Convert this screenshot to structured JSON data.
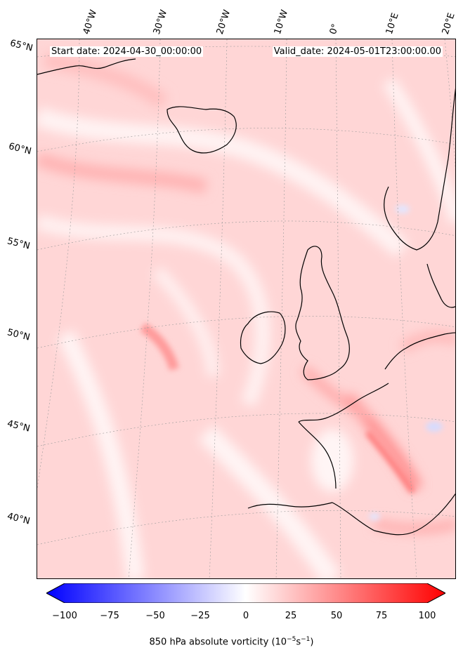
{
  "header": {
    "start_date": "Start date: 2024-04-30_00:00:00",
    "valid_date": "Valid_date: 2024-05-01T23:00:00.00"
  },
  "map": {
    "longitude_labels": [
      "40°W",
      "30°W",
      "20°W",
      "10°W",
      "0°",
      "10°E",
      "20°E"
    ],
    "latitude_labels": [
      "65°N",
      "60°N",
      "55°N",
      "50°N",
      "45°N",
      "40°N"
    ],
    "field": "850 hPa absolute vorticity",
    "colormap": "bwr",
    "background_color": "#ffd9d9",
    "coastline_color": "#000000"
  },
  "colorbar": {
    "ticks": [
      "−100",
      "−75",
      "−50",
      "−25",
      "0",
      "25",
      "50",
      "75",
      "100"
    ],
    "tick_values": [
      -100,
      -75,
      -50,
      -25,
      0,
      25,
      50,
      75,
      100
    ],
    "range": [
      -100,
      100
    ],
    "title_main": "850 hPa absolute vorticity (10",
    "title_exp1": "−5",
    "title_mid": "s",
    "title_exp2": "−1",
    "title_end": ")"
  }
}
